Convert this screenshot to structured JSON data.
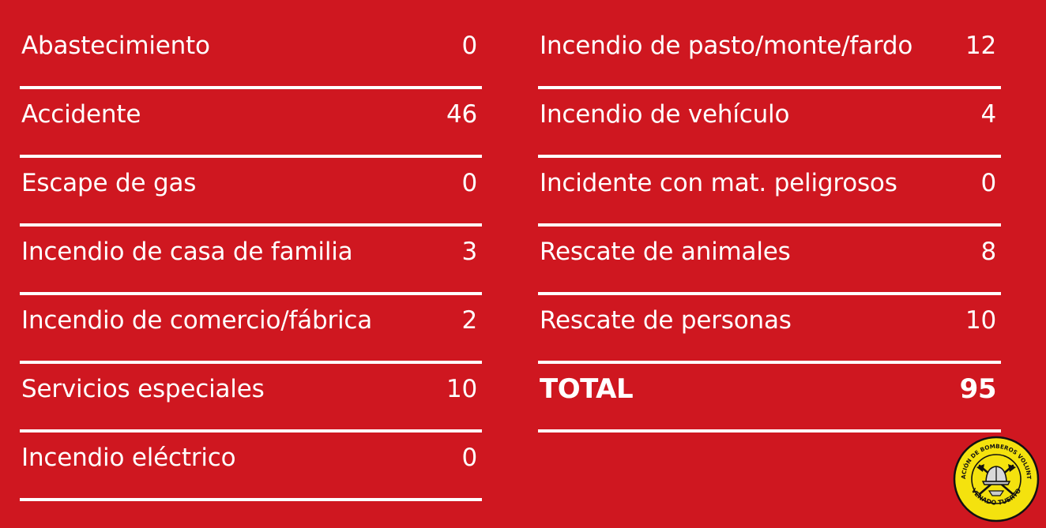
{
  "colors": {
    "background": "#cf1720",
    "text": "#ffffff",
    "seal_yellow": "#f4e20e"
  },
  "left": [
    {
      "label": "Abastecimiento",
      "value": "0"
    },
    {
      "label": "Accidente",
      "value": "46"
    },
    {
      "label": "Escape de gas",
      "value": "0"
    },
    {
      "label": "Incendio de casa de familia",
      "value": "3"
    },
    {
      "label": "Incendio de comercio/fábrica",
      "value": "2"
    },
    {
      "label": "Servicios especiales",
      "value": "10"
    },
    {
      "label": "Incendio eléctrico",
      "value": "0"
    }
  ],
  "right": [
    {
      "label": "Incendio de pasto/monte/fardo",
      "value": "12"
    },
    {
      "label": "Incendio de vehículo",
      "value": "4"
    },
    {
      "label": "Incidente con mat. peligrosos",
      "value": "0"
    },
    {
      "label": "Rescate de animales",
      "value": "8"
    },
    {
      "label": "Rescate de personas",
      "value": "10"
    }
  ],
  "total": {
    "label": "TOTAL",
    "value": "95"
  },
  "seal": {
    "top_text": "ASOCIACIÓN DE BOMBEROS VOLUNTARIOS",
    "bottom_text": "VENADO TUERTO",
    "icon": "firefighter-helmet-axes-icon"
  }
}
